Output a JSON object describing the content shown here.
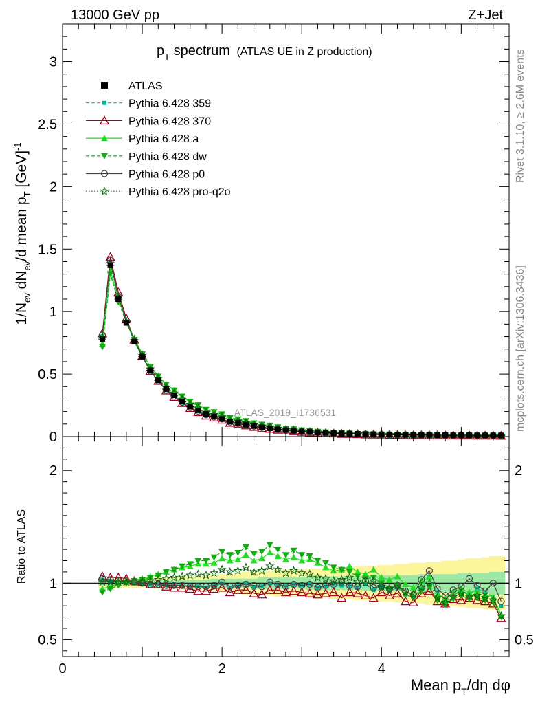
{
  "header": {
    "energy_label": "13000 GeV pp",
    "process_label": "Z+Jet"
  },
  "side": {
    "rivet_label": "Rivet 3.1.10, ≥ 2.6M events",
    "mcplots_label": "mcplots.cern.ch [arXiv:1306.3436]"
  },
  "chart_data": [
    {
      "type": "line",
      "panel": "main",
      "title_main": "p",
      "title_sub": "T",
      "title_rest": " spectrum",
      "title_extra": "(ATLAS UE in Z production)",
      "analysis_label": "ATLAS_2019_I1736531",
      "ylabel": "1/N_ev dN_ev/d mean p_T [GeV]^-1",
      "ylim": [
        0,
        3.3
      ],
      "xlim": [
        0,
        5.6
      ],
      "yticks": [
        {
          "v": 0,
          "label": "0"
        },
        {
          "v": 0.5,
          "label": "0.5"
        },
        {
          "v": 1,
          "label": "1"
        },
        {
          "v": 1.5,
          "label": "1.5"
        },
        {
          "v": 2,
          "label": "2"
        },
        {
          "v": 2.5,
          "label": "2.5"
        },
        {
          "v": 3,
          "label": "3"
        }
      ],
      "x": [
        0.5,
        0.6,
        0.7,
        0.8,
        0.9,
        1.0,
        1.1,
        1.2,
        1.3,
        1.4,
        1.5,
        1.6,
        1.7,
        1.8,
        1.9,
        2.0,
        2.1,
        2.2,
        2.3,
        2.4,
        2.5,
        2.6,
        2.7,
        2.8,
        2.9,
        3.0,
        3.1,
        3.2,
        3.3,
        3.4,
        3.5,
        3.6,
        3.7,
        3.8,
        3.9,
        4.0,
        4.1,
        4.2,
        4.3,
        4.4,
        4.5,
        4.6,
        4.7,
        4.8,
        4.9,
        5.0,
        5.1,
        5.2,
        5.3,
        5.4,
        5.5
      ],
      "atlas": [
        0.78,
        1.37,
        1.1,
        0.91,
        0.76,
        0.64,
        0.53,
        0.45,
        0.38,
        0.33,
        0.28,
        0.24,
        0.21,
        0.18,
        0.16,
        0.14,
        0.12,
        0.11,
        0.095,
        0.085,
        0.075,
        0.066,
        0.058,
        0.052,
        0.046,
        0.041,
        0.037,
        0.033,
        0.03,
        0.027,
        0.025,
        0.023,
        0.021,
        0.019,
        0.018,
        0.017,
        0.016,
        0.015,
        0.014,
        0.013,
        0.012,
        0.012,
        0.011,
        0.011,
        0.01,
        0.01,
        0.01,
        0.009,
        0.009,
        0.009,
        0.009
      ],
      "legend": [
        {
          "name": "ATLAS",
          "color": "#000000",
          "marker": "filled-square",
          "line": "none"
        },
        {
          "name": "Pythia 6.428 359",
          "color": "#00b894",
          "marker": "filled-square-small",
          "line": "dashed"
        },
        {
          "name": "Pythia 6.428 370",
          "color": "#a00020",
          "marker": "open-triangle-up",
          "line": "solid"
        },
        {
          "name": "Pythia 6.428 a",
          "color": "#22dd22",
          "marker": "filled-triangle-up",
          "line": "solid"
        },
        {
          "name": "Pythia 6.428 dw",
          "color": "#11aa11",
          "marker": "filled-triangle-down",
          "line": "dashed"
        },
        {
          "name": "Pythia 6.428 p0",
          "color": "#444444",
          "marker": "open-circle",
          "line": "solid"
        },
        {
          "name": "Pythia 6.428 pro-q2o",
          "color": "#116611",
          "marker": "open-star",
          "line": "dotted"
        }
      ]
    },
    {
      "type": "line",
      "panel": "ratio",
      "ylabel": "Ratio to ATLAS",
      "xlabel": "Mean p_T/dη dφ",
      "ylim": [
        0.35,
        2.3
      ],
      "xlim": [
        0,
        5.6
      ],
      "yticks": [
        {
          "v": 0.5,
          "label": "0.5"
        },
        {
          "v": 1,
          "label": "1"
        },
        {
          "v": 2,
          "label": "2"
        }
      ],
      "xticks": [
        {
          "v": 0,
          "label": "0"
        },
        {
          "v": 2,
          "label": "2"
        },
        {
          "v": 4,
          "label": "4"
        }
      ],
      "x": [
        0.5,
        0.6,
        0.7,
        0.8,
        0.9,
        1.0,
        1.1,
        1.2,
        1.3,
        1.4,
        1.5,
        1.6,
        1.7,
        1.8,
        1.9,
        2.0,
        2.1,
        2.2,
        2.3,
        2.4,
        2.5,
        2.6,
        2.7,
        2.8,
        2.9,
        3.0,
        3.1,
        3.2,
        3.3,
        3.4,
        3.5,
        3.6,
        3.7,
        3.8,
        3.9,
        4.0,
        4.1,
        4.2,
        4.3,
        4.4,
        4.5,
        4.6,
        4.7,
        4.8,
        4.9,
        5.0,
        5.1,
        5.2,
        5.3,
        5.4,
        5.5
      ],
      "band_stat": [
        0.02,
        0.02,
        0.02,
        0.02,
        0.02,
        0.02,
        0.02,
        0.03,
        0.03,
        0.03,
        0.03,
        0.03,
        0.03,
        0.03,
        0.04,
        0.04,
        0.04,
        0.04,
        0.04,
        0.04,
        0.05,
        0.05,
        0.05,
        0.05,
        0.05,
        0.05,
        0.06,
        0.06,
        0.06,
        0.06,
        0.06,
        0.06,
        0.06,
        0.07,
        0.07,
        0.07,
        0.07,
        0.07,
        0.07,
        0.07,
        0.08,
        0.08,
        0.08,
        0.08,
        0.08,
        0.09,
        0.09,
        0.09,
        0.09,
        0.1,
        0.1
      ],
      "band_total": [
        0.04,
        0.04,
        0.04,
        0.04,
        0.04,
        0.04,
        0.04,
        0.05,
        0.05,
        0.05,
        0.06,
        0.06,
        0.06,
        0.07,
        0.07,
        0.08,
        0.08,
        0.09,
        0.1,
        0.1,
        0.1,
        0.11,
        0.12,
        0.12,
        0.12,
        0.12,
        0.13,
        0.13,
        0.13,
        0.14,
        0.14,
        0.14,
        0.15,
        0.15,
        0.15,
        0.16,
        0.16,
        0.17,
        0.17,
        0.18,
        0.18,
        0.19,
        0.19,
        0.2,
        0.2,
        0.21,
        0.22,
        0.22,
        0.23,
        0.24,
        0.24
      ],
      "series": [
        {
          "name": "Pythia 6.428 359",
          "values": [
            1.03,
            1.02,
            1.01,
            1.01,
            1.0,
            1.0,
            0.99,
            0.99,
            0.98,
            0.98,
            0.97,
            0.97,
            0.97,
            0.96,
            0.97,
            1.0,
            0.96,
            0.97,
            1.0,
            0.96,
            0.97,
            1.0,
            0.98,
            0.97,
            0.99,
            0.98,
            0.99,
            0.96,
            0.97,
            0.99,
            0.98,
            0.97,
            0.96,
            0.99,
            0.94,
            0.97,
            0.93,
            0.96,
            0.9,
            0.88,
            0.95,
            1.05,
            0.92,
            0.85,
            0.9,
            0.92,
            0.9,
            0.95,
            0.92,
            0.88,
            0.8
          ]
        },
        {
          "name": "Pythia 6.428 370",
          "values": [
            1.06,
            1.05,
            1.05,
            1.04,
            1.02,
            1.01,
            0.99,
            0.99,
            0.97,
            0.96,
            0.96,
            0.95,
            0.93,
            0.93,
            0.95,
            0.96,
            0.92,
            0.94,
            0.94,
            0.91,
            0.9,
            0.94,
            0.94,
            0.92,
            0.93,
            0.92,
            0.91,
            0.9,
            0.91,
            0.92,
            0.87,
            0.92,
            0.91,
            0.89,
            0.87,
            0.92,
            0.89,
            0.91,
            0.84,
            0.83,
            0.91,
            0.93,
            0.84,
            0.82,
            0.86,
            0.85,
            0.87,
            0.85,
            0.84,
            0.82,
            0.69
          ]
        },
        {
          "name": "Pythia 6.428 a",
          "values": [
            0.95,
            0.97,
            1.0,
            1.02,
            1.03,
            1.04,
            1.06,
            1.08,
            1.1,
            1.12,
            1.14,
            1.15,
            1.17,
            1.17,
            1.18,
            1.22,
            1.2,
            1.21,
            1.25,
            1.2,
            1.22,
            1.27,
            1.24,
            1.21,
            1.23,
            1.2,
            1.21,
            1.18,
            1.14,
            1.11,
            1.12,
            1.15,
            1.1,
            1.08,
            1.12,
            1.05,
            1.03,
            1.06,
            0.99,
            0.96,
            1.02,
            1.05,
            0.9,
            0.87,
            0.92,
            0.95,
            0.92,
            0.93,
            0.9,
            0.88,
            0.72
          ]
        },
        {
          "name": "Pythia 6.428 dw",
          "values": [
            0.92,
            0.95,
            0.98,
            1.0,
            1.02,
            1.03,
            1.05,
            1.07,
            1.1,
            1.12,
            1.15,
            1.17,
            1.2,
            1.2,
            1.23,
            1.28,
            1.25,
            1.27,
            1.32,
            1.26,
            1.28,
            1.34,
            1.3,
            1.25,
            1.29,
            1.25,
            1.24,
            1.2,
            1.18,
            1.14,
            1.12,
            1.1,
            1.06,
            1.04,
            1.05,
            1.0,
            0.95,
            0.98,
            0.9,
            0.87,
            0.93,
            0.97,
            0.85,
            0.81,
            0.86,
            0.89,
            0.86,
            0.87,
            0.85,
            0.83,
            0.7
          ]
        },
        {
          "name": "Pythia 6.428 p0",
          "values": [
            1.04,
            1.03,
            1.02,
            1.02,
            1.01,
            1.0,
            0.99,
            0.99,
            0.98,
            0.98,
            0.98,
            0.97,
            0.97,
            0.97,
            0.98,
            1.01,
            0.97,
            0.98,
            0.99,
            0.98,
            0.97,
            1.01,
            0.99,
            0.97,
            0.99,
            0.98,
            0.99,
            0.96,
            0.98,
            0.99,
            1.01,
            0.98,
            0.97,
            1.02,
            0.96,
            0.97,
            0.95,
            0.98,
            0.93,
            0.9,
            1.03,
            1.11,
            0.95,
            0.89,
            0.94,
            0.97,
            1.04,
            0.98,
            0.93,
            1.0,
            0.84
          ]
        },
        {
          "name": "Pythia 6.428 pro-q2o",
          "values": [
            1.01,
            1.01,
            1.01,
            1.01,
            1.01,
            1.01,
            1.02,
            1.03,
            1.04,
            1.05,
            1.06,
            1.07,
            1.08,
            1.07,
            1.09,
            1.12,
            1.1,
            1.11,
            1.14,
            1.1,
            1.11,
            1.15,
            1.12,
            1.09,
            1.11,
            1.09,
            1.08,
            1.05,
            1.04,
            1.02,
            1.03,
            1.05,
            1.01,
            1.0,
            1.02,
            0.97,
            0.95,
            0.98,
            0.92,
            0.9,
            0.96,
            1.0,
            0.87,
            0.83,
            0.88,
            0.91,
            0.88,
            0.89,
            0.87,
            0.85,
            0.71
          ]
        }
      ]
    }
  ]
}
